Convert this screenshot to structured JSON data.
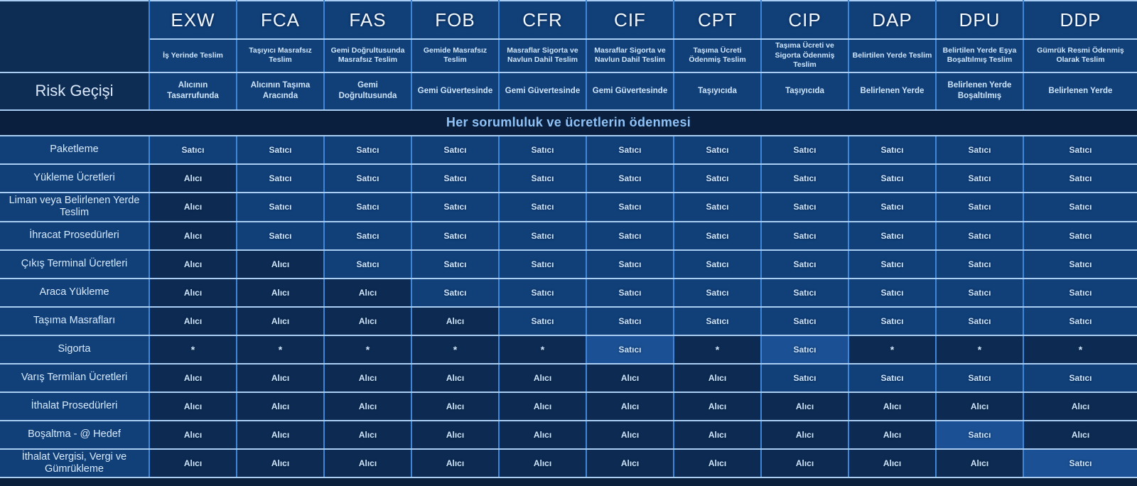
{
  "colors": {
    "background": "#0a1f3c",
    "cell_medium_blue": "#114079",
    "cell_dark_navy": "#0d2b52",
    "cell_bright_blue": "#1b5194",
    "corner_navy": "#0e2d55",
    "band_navy": "#0a1f3e",
    "border_vertical": "#3f86d9",
    "border_horizontal": "#a9cdf3",
    "text_light": "#cfe6fc"
  },
  "table": {
    "risk_row_label": "Risk Geçişi",
    "band_title": "Her sorumluluk ve ücretlerin ödenmesi",
    "columns": [
      {
        "code": "EXW",
        "description": "İş Yerinde Teslim",
        "risk": "Alıcının Tasarrufunda"
      },
      {
        "code": "FCA",
        "description": "Taşıyıcı Masrafsız Teslim",
        "risk": "Alıcının Taşıma Aracında"
      },
      {
        "code": "FAS",
        "description": "Gemi Doğrultusunda Masrafsız Teslim",
        "risk": "Gemi Doğrultusunda"
      },
      {
        "code": "FOB",
        "description": "Gemide Masrafsız Teslim",
        "risk": "Gemi Güvertesinde"
      },
      {
        "code": "CFR",
        "description": "Masraflar Sigorta ve Navlun Dahil Teslim",
        "risk": "Gemi Güvertesinde"
      },
      {
        "code": "CIF",
        "description": "Masraflar Sigorta ve Navlun Dahil Teslim",
        "risk": "Gemi Güvertesinde"
      },
      {
        "code": "CPT",
        "description": "Taşıma Ücreti Ödenmiş Teslim",
        "risk": "Taşıyıcıda"
      },
      {
        "code": "CIP",
        "description": "Taşıma Ücreti ve Sigorta Ödenmiş Teslim",
        "risk": "Taşıyıcıda"
      },
      {
        "code": "DAP",
        "description": "Belirtilen Yerde Teslim",
        "risk": "Belirlenen Yerde"
      },
      {
        "code": "DPU",
        "description": "Belirtilen Yerde Eşya Boşaltılmış Teslim",
        "risk": "Belirlenen Yerde Boşaltılmış"
      },
      {
        "code": "DDP",
        "description": "Gümrük Resmi Ödenmiş Olarak Teslim",
        "risk": "Belirlenen Yerde"
      }
    ],
    "rows": [
      {
        "label": "Paketleme",
        "cells": [
          "Satıcı",
          "Satıcı",
          "Satıcı",
          "Satıcı",
          "Satıcı",
          "Satıcı",
          "Satıcı",
          "Satıcı",
          "Satıcı",
          "Satıcı",
          "Satıcı"
        ]
      },
      {
        "label": "Yükleme Ücretleri",
        "cells": [
          "Alıcı",
          "Satıcı",
          "Satıcı",
          "Satıcı",
          "Satıcı",
          "Satıcı",
          "Satıcı",
          "Satıcı",
          "Satıcı",
          "Satıcı",
          "Satıcı"
        ]
      },
      {
        "label": "Liman veya Belirlenen Yerde Teslim",
        "cells": [
          "Alıcı",
          "Satıcı",
          "Satıcı",
          "Satıcı",
          "Satıcı",
          "Satıcı",
          "Satıcı",
          "Satıcı",
          "Satıcı",
          "Satıcı",
          "Satıcı"
        ]
      },
      {
        "label": "İhracat Prosedürleri",
        "cells": [
          "Alıcı",
          "Satıcı",
          "Satıcı",
          "Satıcı",
          "Satıcı",
          "Satıcı",
          "Satıcı",
          "Satıcı",
          "Satıcı",
          "Satıcı",
          "Satıcı"
        ]
      },
      {
        "label": "Çıkış Terminal Ücretleri",
        "cells": [
          "Alıcı",
          "Alıcı",
          "Satıcı",
          "Satıcı",
          "Satıcı",
          "Satıcı",
          "Satıcı",
          "Satıcı",
          "Satıcı",
          "Satıcı",
          "Satıcı"
        ]
      },
      {
        "label": "Araca Yükleme",
        "cells": [
          "Alıcı",
          "Alıcı",
          "Alıcı",
          "Satıcı",
          "Satıcı",
          "Satıcı",
          "Satıcı",
          "Satıcı",
          "Satıcı",
          "Satıcı",
          "Satıcı"
        ]
      },
      {
        "label": "Taşıma Masrafları",
        "cells": [
          "Alıcı",
          "Alıcı",
          "Alıcı",
          "Alıcı",
          "Satıcı",
          "Satıcı",
          "Satıcı",
          "Satıcı",
          "Satıcı",
          "Satıcı",
          "Satıcı"
        ]
      },
      {
        "label": "Sigorta",
        "cells": [
          "*",
          "*",
          "*",
          "*",
          "*",
          "Satıcı",
          "*",
          "Satıcı",
          "*",
          "*",
          "*"
        ]
      },
      {
        "label": "Varış Termilan Ücretleri",
        "cells": [
          "Alıcı",
          "Alıcı",
          "Alıcı",
          "Alıcı",
          "Alıcı",
          "Alıcı",
          "Alıcı",
          "Satıcı",
          "Satıcı",
          "Satıcı",
          "Satıcı"
        ]
      },
      {
        "label": "İthalat Prosedürleri",
        "cells": [
          "Alıcı",
          "Alıcı",
          "Alıcı",
          "Alıcı",
          "Alıcı",
          "Alıcı",
          "Alıcı",
          "Alıcı",
          "Alıcı",
          "Alıcı",
          "Alıcı"
        ]
      },
      {
        "label": "Boşaltma - @ Hedef",
        "cells": [
          "Alıcı",
          "Alıcı",
          "Alıcı",
          "Alıcı",
          "Alıcı",
          "Alıcı",
          "Alıcı",
          "Alıcı",
          "Alıcı",
          "Satıcı",
          "Alıcı"
        ]
      },
      {
        "label": "İthalat Vergisi, Vergi ve Gümrükleme",
        "cells": [
          "Alıcı",
          "Alıcı",
          "Alıcı",
          "Alıcı",
          "Alıcı",
          "Alıcı",
          "Alıcı",
          "Alıcı",
          "Alıcı",
          "Alıcı",
          "Satıcı"
        ]
      }
    ],
    "highlight_cells": [
      [
        7,
        5
      ],
      [
        7,
        7
      ],
      [
        10,
        9
      ],
      [
        11,
        10
      ]
    ],
    "value_legend": {
      "seller": "Satıcı",
      "buyer": "Alıcı",
      "star": "*"
    }
  }
}
